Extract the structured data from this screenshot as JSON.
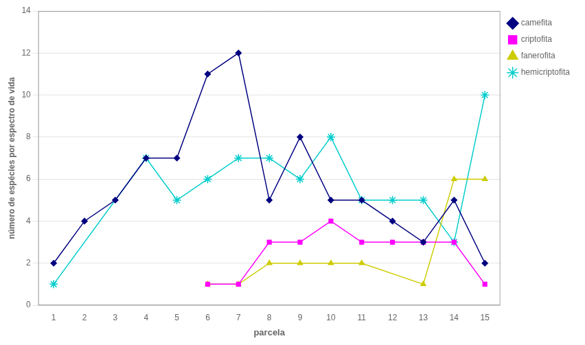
{
  "chart_data": {
    "type": "line",
    "xlabel": "parcela",
    "ylabel": "número de espécies por espectro de vida",
    "series": [
      {
        "name": "camefita",
        "color": "#000080",
        "marker": "diamond",
        "line_style": "solid",
        "x": [
          1,
          2,
          3,
          4,
          5,
          6,
          7,
          8,
          9,
          10,
          11,
          12,
          13,
          14,
          15
        ],
        "values": [
          2,
          4,
          5,
          7,
          7,
          11,
          12,
          5,
          8,
          5,
          5,
          4,
          3,
          5,
          2
        ]
      },
      {
        "name": "criptofita",
        "color": "#ff00ff",
        "marker": "square",
        "line_style": "solid",
        "x": [
          6,
          7,
          8,
          9,
          10,
          11,
          12,
          13,
          14,
          15
        ],
        "values": [
          1,
          1,
          3,
          3,
          4,
          3,
          3,
          3,
          3,
          1
        ]
      },
      {
        "name": "fanerofita",
        "color": "#cccc00",
        "marker": "triangle",
        "line_style": "solid",
        "x": [
          6,
          7,
          8,
          9,
          10,
          11,
          13,
          14,
          15
        ],
        "values": [
          1,
          1,
          2,
          2,
          2,
          2,
          1,
          6,
          6
        ]
      },
      {
        "name": "hemicriptofita",
        "color": "#00cccc",
        "marker": "star",
        "line_style": "solid",
        "x": [
          1,
          4,
          5,
          6,
          7,
          8,
          9,
          10,
          11,
          12,
          13,
          14,
          15
        ],
        "values": [
          1,
          7,
          5,
          6,
          7,
          7,
          6,
          8,
          5,
          5,
          5,
          3,
          10
        ]
      }
    ],
    "xlim": [
      0.5,
      15.5
    ],
    "xticks": [
      1,
      2,
      3,
      4,
      5,
      6,
      7,
      8,
      9,
      10,
      11,
      12,
      13,
      14,
      15
    ],
    "ylim": [
      0,
      14
    ],
    "yticks": [
      0,
      2,
      4,
      6,
      8,
      10,
      12,
      14
    ],
    "grid": "y",
    "legend": "right"
  }
}
